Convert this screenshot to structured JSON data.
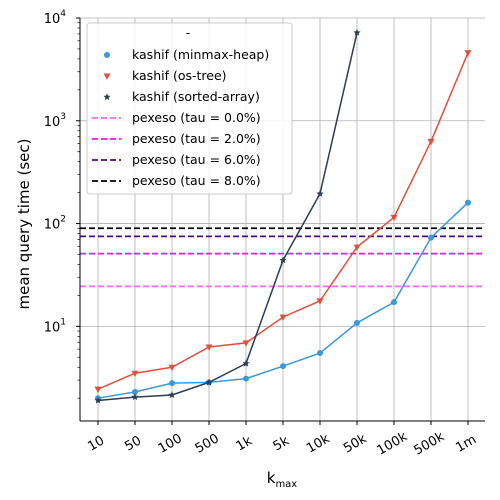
{
  "chart_data": {
    "type": "line",
    "xlabel": "k",
    "xlabel_sub": "max",
    "ylabel": "mean query time (sec)",
    "yscale": "log",
    "ylim": [
      1.2,
      10000
    ],
    "grid": true,
    "legend_title": "-",
    "legend_position": "top-left",
    "categories": [
      "10",
      "50",
      "100",
      "500",
      "1k",
      "5k",
      "10k",
      "50k",
      "100k",
      "500k",
      "1m"
    ],
    "y_ticks": [
      {
        "value": 10,
        "base": "10",
        "exp": "1"
      },
      {
        "value": 100,
        "base": "10",
        "exp": "2"
      },
      {
        "value": 1000,
        "base": "10",
        "exp": "3"
      },
      {
        "value": 10000,
        "base": "10",
        "exp": "4"
      }
    ],
    "series": [
      {
        "name": "kashif (minmax-heap)",
        "color": "#3a9ad9",
        "marker": "circle",
        "values": [
          2.0,
          2.3,
          2.8,
          2.85,
          3.1,
          4.1,
          5.5,
          10.8,
          17.2,
          73,
          160
        ]
      },
      {
        "name": "kashif (os-tree)",
        "color": "#e0503c",
        "marker": "triangle-down",
        "values": [
          2.45,
          3.5,
          4.0,
          6.3,
          6.9,
          12.3,
          17.7,
          59,
          115,
          630,
          4600
        ]
      },
      {
        "name": "kashif (sorted-array)",
        "color": "#2c3e50",
        "marker": "star",
        "values": [
          1.9,
          2.05,
          2.15,
          2.85,
          4.35,
          44,
          195,
          7200,
          null,
          null,
          null
        ]
      }
    ],
    "hlines": [
      {
        "name": "pexeso (tau = 0.0%)",
        "color": "#f06de8",
        "value": 24.5
      },
      {
        "name": "pexeso (tau = 2.0%)",
        "color": "#ee16e0",
        "value": 51
      },
      {
        "name": "pexeso (tau = 6.0%)",
        "color": "#4b0a8a",
        "value": 75
      },
      {
        "name": "pexeso (tau = 8.0%)",
        "color": "#000000",
        "value": 90
      }
    ]
  }
}
